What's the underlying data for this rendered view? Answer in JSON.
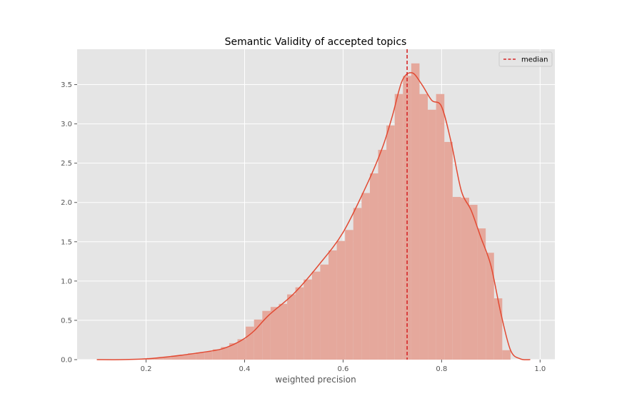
{
  "chart_data": {
    "type": "histogram",
    "title": "Semantic Validity of accepted topics",
    "xlabel": "weighted precision",
    "ylabel": "",
    "xlim": [
      0.06,
      1.03
    ],
    "ylim": [
      0,
      3.95
    ],
    "xticks": [
      0.2,
      0.4,
      0.6,
      0.8,
      1.0
    ],
    "xtick_labels": [
      "0.2",
      "0.4",
      "0.6",
      "0.8",
      "1.0"
    ],
    "yticks": [
      0.0,
      0.5,
      1.0,
      1.5,
      2.0,
      2.5,
      3.0,
      3.5
    ],
    "ytick_labels": [
      "0.0",
      "0.5",
      "1.0",
      "1.5",
      "2.0",
      "2.5",
      "3.0",
      "3.5"
    ],
    "grid": true,
    "histogram": {
      "bin_edges": [
        0.1,
        0.1168,
        0.1336,
        0.1504,
        0.1672,
        0.184,
        0.2008,
        0.2176,
        0.2344,
        0.2512,
        0.268,
        0.2848,
        0.3016,
        0.3184,
        0.3352,
        0.352,
        0.3688,
        0.3856,
        0.4024,
        0.4192,
        0.436,
        0.4528,
        0.4696,
        0.4864,
        0.5032,
        0.52,
        0.5368,
        0.5536,
        0.5704,
        0.5872,
        0.604,
        0.6208,
        0.6376,
        0.6544,
        0.6712,
        0.688,
        0.7048,
        0.7216,
        0.7384,
        0.7552,
        0.772,
        0.7888,
        0.8056,
        0.8224,
        0.8392,
        0.856,
        0.8728,
        0.8896,
        0.9064,
        0.9232,
        0.94
      ],
      "counts": [
        0.0,
        0.0,
        0.0,
        0.0,
        0.0,
        0.01,
        0.02,
        0.02,
        0.03,
        0.05,
        0.06,
        0.08,
        0.09,
        0.1,
        0.13,
        0.16,
        0.21,
        0.26,
        0.42,
        0.51,
        0.62,
        0.67,
        0.71,
        0.83,
        0.92,
        1.02,
        1.12,
        1.21,
        1.39,
        1.51,
        1.65,
        1.93,
        2.12,
        2.37,
        2.67,
        2.98,
        3.38,
        3.61,
        3.77,
        3.38,
        3.18,
        3.38,
        2.77,
        2.07,
        2.06,
        1.97,
        1.67,
        1.36,
        0.78,
        0.12
      ],
      "color": "#e5a89c"
    },
    "series": [
      {
        "name": "density",
        "type": "line",
        "color": "#e24a33",
        "x": [
          0.1,
          0.15,
          0.2,
          0.25,
          0.3,
          0.35,
          0.38,
          0.4,
          0.42,
          0.45,
          0.5,
          0.55,
          0.6,
          0.65,
          0.68,
          0.7,
          0.72,
          0.74,
          0.76,
          0.78,
          0.8,
          0.82,
          0.84,
          0.86,
          0.88,
          0.9,
          0.92,
          0.94,
          0.96,
          0.98
        ],
        "y": [
          0.0,
          0.0,
          0.01,
          0.04,
          0.08,
          0.13,
          0.2,
          0.27,
          0.37,
          0.57,
          0.84,
          1.2,
          1.62,
          2.25,
          2.7,
          3.1,
          3.55,
          3.65,
          3.5,
          3.3,
          3.22,
          2.75,
          2.15,
          1.9,
          1.55,
          1.2,
          0.6,
          0.12,
          0.01,
          0.0
        ]
      }
    ],
    "median": {
      "label": "median",
      "value": 0.73,
      "color": "#d62728",
      "style": "dashed"
    },
    "legend": {
      "position": "top-right",
      "entries": [
        "median"
      ]
    },
    "colors": {
      "background": "#e5e5e5",
      "grid": "#ffffff",
      "tick_text": "#555555"
    }
  }
}
